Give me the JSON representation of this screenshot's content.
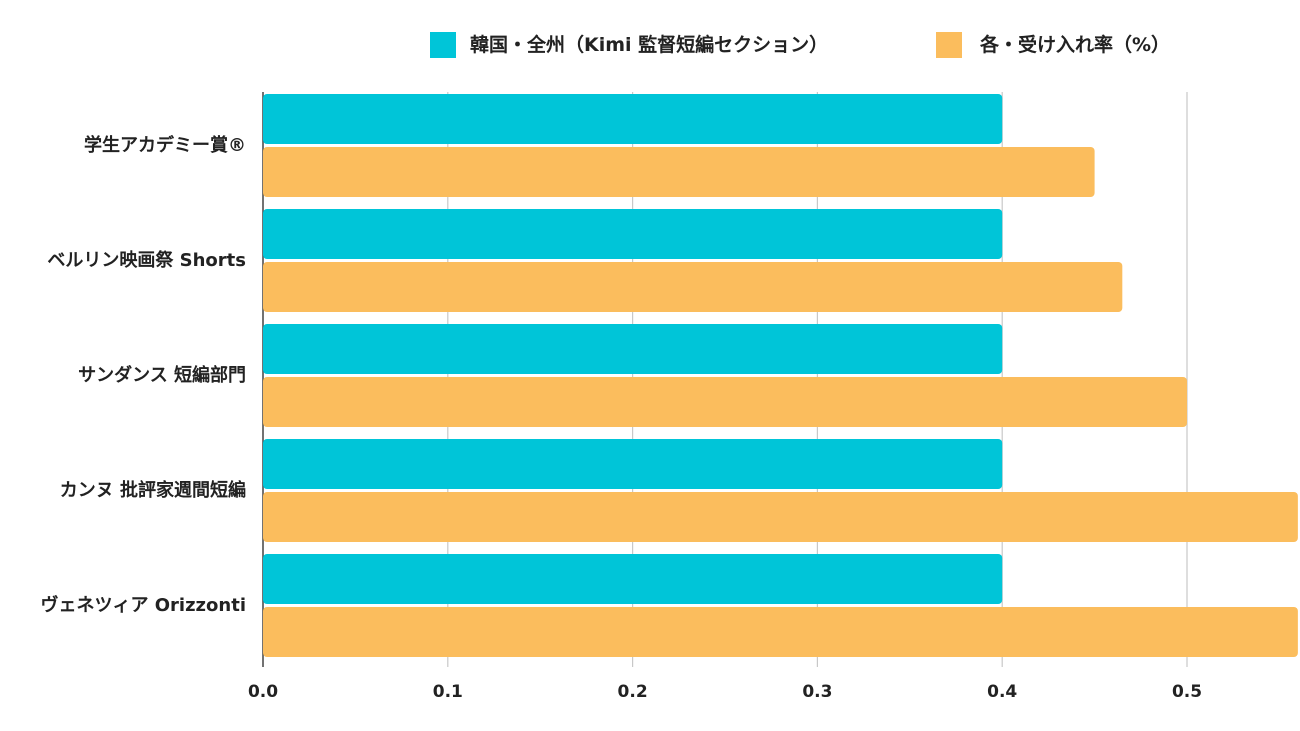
{
  "chart_data": {
    "type": "bar",
    "orientation": "horizontal",
    "categories": [
      "学生アカデミー賞®",
      "ベルリン映画祭 Shorts",
      "サンダンス 短編部門",
      "カンヌ 批評家週間短編",
      "ヴェネツィア Orizzonti"
    ],
    "series": [
      {
        "name": "韓国・全州（Kimi 監督短編セクション）",
        "color": "#00c5d8",
        "values": [
          0.4,
          0.4,
          0.4,
          0.4,
          0.4
        ]
      },
      {
        "name": "各・受け入れ率（%）",
        "color": "#fbbd5d",
        "values": [
          0.45,
          0.465,
          0.5,
          0.56,
          0.56
        ]
      }
    ],
    "x_ticks": [
      "0.0",
      "0.1",
      "0.2",
      "0.3",
      "0.4",
      "0.5"
    ],
    "xlim": [
      0,
      0.56
    ],
    "grid": true,
    "legend_position": "top"
  }
}
